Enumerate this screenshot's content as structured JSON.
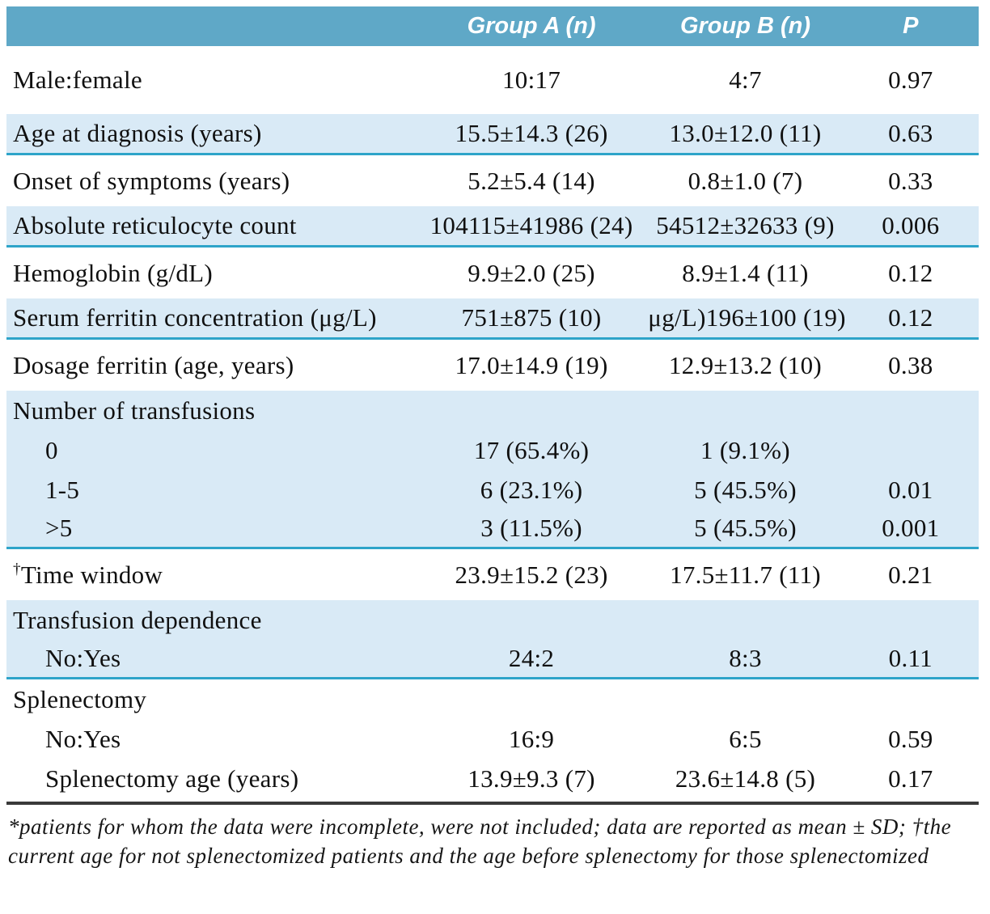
{
  "palette": {
    "header_bg": "#5fa8c7",
    "shade_bg": "#d9eaf6",
    "divider": "#2ea4c9",
    "rule": "#3a3a3a"
  },
  "table": {
    "header": {
      "blank": "",
      "group_a": "Group A (n)",
      "group_b": "Group B (n)",
      "p": "P"
    },
    "rows": [
      {
        "kind": "row",
        "shade": false,
        "divider": false,
        "label": "Male:female",
        "a": "10:17",
        "b": "4:7",
        "p": "0.97"
      },
      {
        "kind": "row",
        "shade": true,
        "divider": true,
        "label": "Age at diagnosis (years)",
        "a": "15.5±14.3 (26)",
        "b": "13.0±12.0 (11)",
        "p": "0.63"
      },
      {
        "kind": "row",
        "shade": false,
        "divider": false,
        "label": "Onset of symptoms (years)",
        "a": "5.2±5.4 (14)",
        "b": "0.8±1.0 (7)",
        "p": "0.33"
      },
      {
        "kind": "row",
        "shade": true,
        "divider": true,
        "label": "Absolute reticulocyte count",
        "a": "104115±41986 (24)",
        "b": "54512±32633 (9)",
        "p": "0.006"
      },
      {
        "kind": "row",
        "shade": false,
        "divider": false,
        "label": "Hemoglobin (g/dL)",
        "a": "9.9±2.0 (25)",
        "b": "8.9±1.4 (11)",
        "p": "0.12"
      },
      {
        "kind": "row",
        "shade": true,
        "divider": true,
        "label": "Serum ferritin concentration (μg/L)",
        "a": "751±875 (10)",
        "b": "μg/L)196±100 (19)",
        "p": "0.12"
      },
      {
        "kind": "row",
        "shade": false,
        "divider": false,
        "label": "Dosage ferritin (age, years)",
        "a": "17.0±14.9 (19)",
        "b": "12.9±13.2 (10)",
        "p": "0.38"
      },
      {
        "kind": "section",
        "shade": true,
        "divider": false,
        "label": "Number of transfusions",
        "a": "",
        "b": "",
        "p": ""
      },
      {
        "kind": "sub",
        "shade": true,
        "divider": false,
        "label": "0",
        "a": "17 (65.4%)",
        "b": "1 (9.1%)",
        "p": ""
      },
      {
        "kind": "sub",
        "shade": true,
        "divider": false,
        "label": "1-5",
        "a": "6 (23.1%)",
        "b": "5 (45.5%)",
        "p": "0.01"
      },
      {
        "kind": "sub",
        "shade": true,
        "divider": true,
        "label": ">5",
        "a": "3 (11.5%)",
        "b": "5 (45.5%)",
        "p": "0.001"
      },
      {
        "kind": "row",
        "shade": false,
        "divider": false,
        "sup": "†",
        "label": "Time window",
        "a": "23.9±15.2 (23)",
        "b": "17.5±11.7 (11)",
        "p": "0.21"
      },
      {
        "kind": "section",
        "shade": true,
        "divider": false,
        "label": "Transfusion dependence",
        "a": "",
        "b": "",
        "p": ""
      },
      {
        "kind": "sub",
        "shade": true,
        "divider": true,
        "label": "No:Yes",
        "a": "24:2",
        "b": "8:3",
        "p": "0.11"
      },
      {
        "kind": "section",
        "shade": false,
        "divider": false,
        "label": "Splenectomy",
        "a": "",
        "b": "",
        "p": ""
      },
      {
        "kind": "sub",
        "shade": false,
        "divider": false,
        "label": "No:Yes",
        "a": "16:9",
        "b": "6:5",
        "p": "0.59"
      },
      {
        "kind": "sub",
        "shade": false,
        "divider": false,
        "label": "Splenectomy age (years)",
        "a": "13.9±9.3 (7)",
        "b": "23.6±14.8 (5)",
        "p": "0.17"
      }
    ]
  },
  "footnote": "*patients for whom the data were incomplete, were not included; data are reported as mean ± SD; †the current age for not splenectomized patients and the age before splenectomy for those splenectomized"
}
